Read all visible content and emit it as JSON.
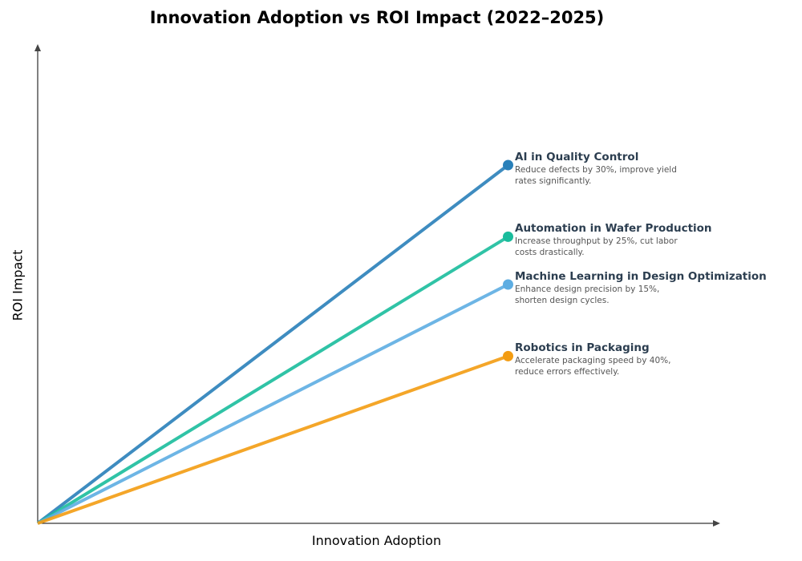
{
  "chart_data": {
    "type": "line",
    "title": "Innovation Adoption vs ROI Impact (2022–2025)",
    "xlabel": "Innovation Adoption",
    "ylabel": "ROI Impact",
    "xlim": [
      0,
      1
    ],
    "ylim": [
      0,
      1
    ],
    "grid": false,
    "legend": "annotations at line ends",
    "series": [
      {
        "name": "AI in Quality Control",
        "description": "Reduce defects by 30%, improve yield rates significantly.",
        "color": "#2980b9",
        "x": [
          0,
          0.69
        ],
        "y": [
          0,
          0.75
        ]
      },
      {
        "name": "Automation in Wafer Production",
        "description": "Increase throughput by 25%, cut labor costs drastically.",
        "color": "#1abc9c",
        "x": [
          0,
          0.69
        ],
        "y": [
          0,
          0.6
        ]
      },
      {
        "name": "Machine Learning in Design Optimization",
        "description": "Enhance design precision by 15%, shorten design cycles.",
        "color": "#5dade2",
        "x": [
          0,
          0.69
        ],
        "y": [
          0,
          0.5
        ]
      },
      {
        "name": "Robotics in Packaging",
        "description": "Accelerate packaging speed by 40%, reduce errors effectively.",
        "color": "#f39c12",
        "x": [
          0,
          0.69
        ],
        "y": [
          0,
          0.35
        ]
      }
    ]
  }
}
